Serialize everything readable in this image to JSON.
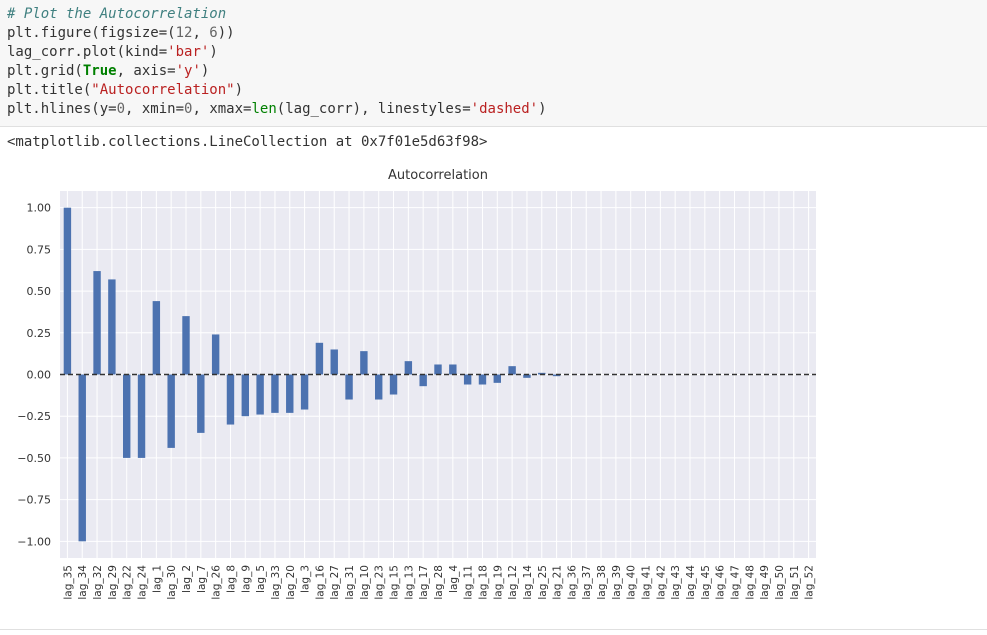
{
  "code": {
    "line1": "# Plot the Autocorrelation",
    "line2_a": "plt.figure(figsize=(",
    "line2_b": "12",
    "line2_c": ", ",
    "line2_d": "6",
    "line2_e": "))",
    "line3_a": "lag_corr.plot(kind=",
    "line3_b": "'bar'",
    "line3_c": ")",
    "line4_a": "plt.grid(",
    "line4_b": "True",
    "line4_c": ", axis=",
    "line4_d": "'y'",
    "line4_e": ")",
    "line5_a": "plt.title(",
    "line5_b": "\"Autocorrelation\"",
    "line5_c": ")",
    "line6_a": "plt.hlines(y=",
    "line6_b": "0",
    "line6_c": ", xmin=",
    "line6_d": "0",
    "line6_e": ", xmax=",
    "line6_f": "len",
    "line6_g": "(lag_corr), linestyles=",
    "line6_h": "'dashed'",
    "line6_i": ")"
  },
  "output_text": "<matplotlib.collections.LineCollection at 0x7f01e5d63f98>",
  "colors": {
    "bar": "#4c72b0",
    "plot_bg": "#eaeaf2",
    "grid": "#ffffff",
    "hline": "#333333"
  },
  "chart_data": {
    "type": "bar",
    "title": "Autocorrelation",
    "xlabel": "",
    "ylabel": "",
    "ylim": [
      -1.1,
      1.1
    ],
    "yticks": [
      "1.00",
      "0.75",
      "0.50",
      "0.25",
      "0.00",
      "-0.25",
      "-0.50",
      "-0.75",
      "-1.00"
    ],
    "ytick_values": [
      1.0,
      0.75,
      0.5,
      0.25,
      0.0,
      -0.25,
      -0.5,
      -0.75,
      -1.0
    ],
    "grid": "y",
    "hline": {
      "y": 0,
      "style": "dashed"
    },
    "categories": [
      "lag_35",
      "lag_34",
      "lag_32",
      "lag_29",
      "lag_22",
      "lag_24",
      "lag_1",
      "lag_30",
      "lag_2",
      "lag_7",
      "lag_26",
      "lag_8",
      "lag_9",
      "lag_5",
      "lag_33",
      "lag_20",
      "lag_3",
      "lag_16",
      "lag_27",
      "lag_31",
      "lag_10",
      "lag_23",
      "lag_15",
      "lag_13",
      "lag_17",
      "lag_28",
      "lag_4",
      "lag_11",
      "lag_18",
      "lag_19",
      "lag_12",
      "lag_14",
      "lag_25",
      "lag_21",
      "lag_36",
      "lag_37",
      "lag_38",
      "lag_39",
      "lag_40",
      "lag_41",
      "lag_42",
      "lag_43",
      "lag_44",
      "lag_45",
      "lag_46",
      "lag_47",
      "lag_48",
      "lag_49",
      "lag_50",
      "lag_51",
      "lag_52"
    ],
    "values": [
      1.0,
      -1.0,
      0.62,
      0.57,
      -0.5,
      -0.5,
      0.44,
      -0.44,
      0.35,
      -0.35,
      0.24,
      -0.3,
      -0.25,
      -0.24,
      -0.23,
      -0.23,
      -0.21,
      0.19,
      0.15,
      -0.15,
      0.14,
      -0.15,
      -0.12,
      0.08,
      -0.07,
      0.06,
      0.06,
      -0.06,
      -0.06,
      -0.05,
      0.05,
      -0.02,
      0.01,
      -0.01,
      0,
      0,
      0,
      0,
      0,
      0,
      0,
      0,
      0,
      0,
      0,
      0,
      0,
      0,
      0,
      0,
      0
    ]
  }
}
